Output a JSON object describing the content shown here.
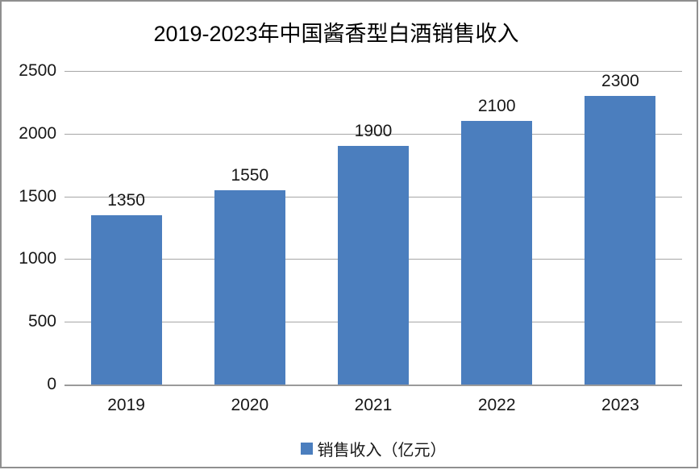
{
  "chart_data": {
    "type": "bar",
    "title": "2019-2023年中国酱香型白酒销售收入",
    "categories": [
      "2019",
      "2020",
      "2021",
      "2022",
      "2023"
    ],
    "values": [
      1350,
      1550,
      1900,
      2100,
      2300
    ],
    "series": [
      {
        "name": "销售收入（亿元）",
        "values": [
          1350,
          1550,
          1900,
          2100,
          2300
        ]
      }
    ],
    "series_name": "销售收入（亿元）",
    "xlabel": "",
    "ylabel": "",
    "ylim": [
      0,
      2500
    ],
    "yticks": [
      0,
      500,
      1000,
      1500,
      2000,
      2500
    ],
    "grid": true,
    "data_labels": true,
    "legend_position": "bottom",
    "colors": {
      "bar": "#4B7EBE",
      "gridline": "#A6A6A6",
      "axis": "#9A9A9A",
      "text": "#171717",
      "frame_border": "#8F8F8F"
    }
  }
}
